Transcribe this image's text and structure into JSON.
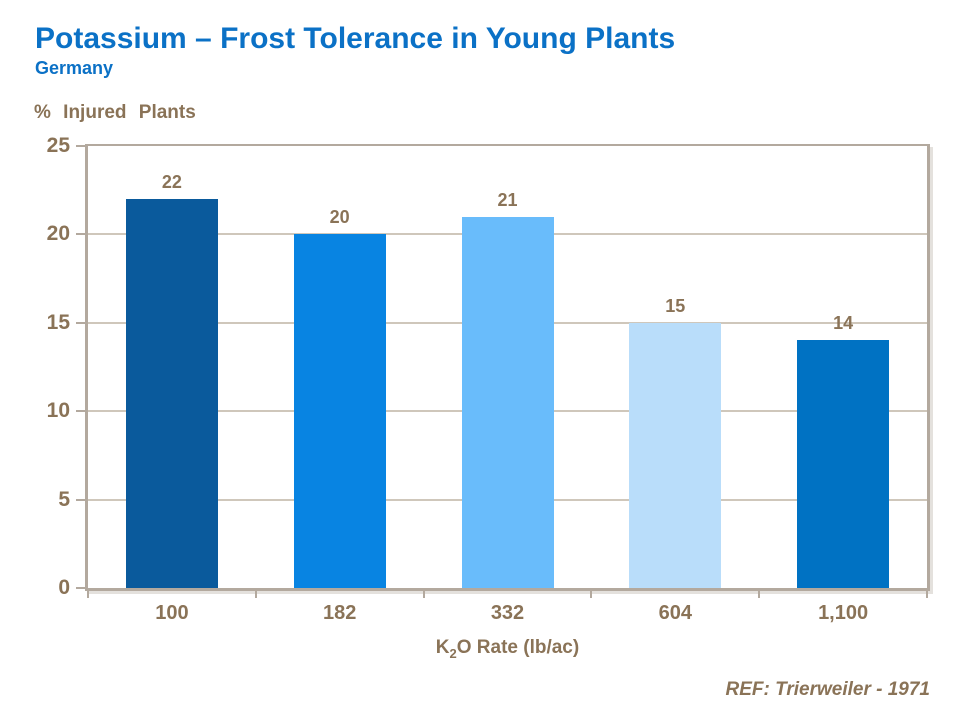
{
  "header": {
    "title": "Potassium – Frost Tolerance in Young Plants",
    "subtitle": "Germany"
  },
  "footer": {
    "ref": "REF: Trierweiler - 1971"
  },
  "chart_data": {
    "type": "bar",
    "title": "Potassium – Frost Tolerance in Young Plants",
    "subtitle": "Germany",
    "ylabel": "% Injured Plants",
    "xlabel": "K2O Rate (lb/ac)",
    "xlabel_parts": {
      "base": "K",
      "sub": "2",
      "rest": "O Rate (lb/ac)"
    },
    "categories": [
      "100",
      "182",
      "332",
      "604",
      "1,100"
    ],
    "values": [
      22,
      20,
      21,
      15,
      14
    ],
    "data_labels": [
      "22",
      "20",
      "21",
      "15",
      "14"
    ],
    "ylim": [
      0,
      25
    ],
    "yticks": [
      0,
      5,
      10,
      15,
      20,
      25
    ],
    "grid": true,
    "legend_position": "none",
    "colors": {
      "bars": [
        "#0a5a9c",
        "#0884e2",
        "#69bcfb",
        "#b9ddfa",
        "#0072c3"
      ],
      "title_text": "#0b71c6",
      "axis_text": "#8a7357",
      "axis_line": "#b3a99e",
      "gridline": "#cfc7bb"
    }
  }
}
